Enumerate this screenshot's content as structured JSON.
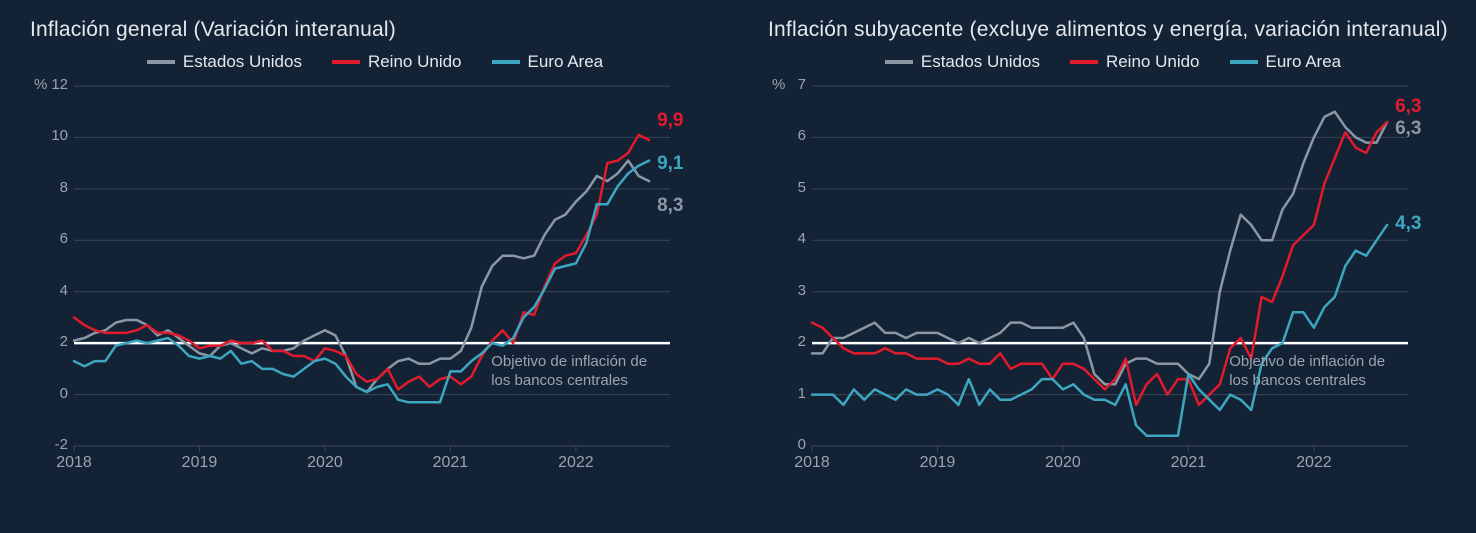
{
  "background_color": "#132235",
  "text_color": "#e4e8ed",
  "muted_color": "#9aa4b0",
  "grid_color": "#3a4656",
  "target_line_color": "#ffffff",
  "font_family": "Segoe UI",
  "panels": [
    {
      "title": "Inflación general (Variación interanual)",
      "y_unit": "%",
      "ylim": [
        -2,
        12
      ],
      "ytick_step": 2,
      "yticks": [
        -2,
        0,
        2,
        4,
        6,
        8,
        10,
        12
      ],
      "x_years": [
        2018,
        2019,
        2020,
        2021,
        2022
      ],
      "x_range_months": 58,
      "target_line_value": 2,
      "target_note": "Objetivo de inflación de\nlos bancos centrales",
      "line_width": 2.5,
      "legend": [
        {
          "label": "Estados Unidos",
          "color": "#8a97a5"
        },
        {
          "label": "Reino Unido",
          "color": "#e21b2c"
        },
        {
          "label": "Euro Area",
          "color": "#3da6c1"
        }
      ],
      "series": {
        "us": {
          "color": "#8a97a5",
          "end_label": "8,3",
          "end_label_color": "#8a97a5",
          "values": [
            2.1,
            2.2,
            2.4,
            2.5,
            2.8,
            2.9,
            2.9,
            2.7,
            2.3,
            2.5,
            2.2,
            1.9,
            1.6,
            1.5,
            1.9,
            2.0,
            1.8,
            1.6,
            1.8,
            1.7,
            1.7,
            1.8,
            2.1,
            2.3,
            2.5,
            2.3,
            1.5,
            0.3,
            0.1,
            0.6,
            1.0,
            1.3,
            1.4,
            1.2,
            1.2,
            1.4,
            1.4,
            1.7,
            2.6,
            4.2,
            5.0,
            5.4,
            5.4,
            5.3,
            5.4,
            6.2,
            6.8,
            7.0,
            7.5,
            7.9,
            8.5,
            8.3,
            8.6,
            9.1,
            8.5,
            8.3
          ]
        },
        "uk": {
          "color": "#e21b2c",
          "end_label": "9,9",
          "end_label_color": "#e21b2c",
          "values": [
            3.0,
            2.7,
            2.5,
            2.4,
            2.4,
            2.4,
            2.5,
            2.7,
            2.4,
            2.4,
            2.3,
            2.1,
            1.8,
            1.9,
            1.9,
            2.1,
            2.0,
            2.0,
            2.1,
            1.7,
            1.7,
            1.5,
            1.5,
            1.3,
            1.8,
            1.7,
            1.5,
            0.8,
            0.5,
            0.6,
            1.0,
            0.2,
            0.5,
            0.7,
            0.3,
            0.6,
            0.7,
            0.4,
            0.7,
            1.5,
            2.1,
            2.5,
            2.0,
            3.2,
            3.1,
            4.2,
            5.1,
            5.4,
            5.5,
            6.2,
            7.0,
            9.0,
            9.1,
            9.4,
            10.1,
            9.9
          ]
        },
        "ea": {
          "color": "#3da6c1",
          "end_label": "9,1",
          "end_label_color": "#3da6c1",
          "values": [
            1.3,
            1.1,
            1.3,
            1.3,
            1.9,
            2.0,
            2.1,
            2.0,
            2.1,
            2.2,
            1.9,
            1.5,
            1.4,
            1.5,
            1.4,
            1.7,
            1.2,
            1.3,
            1.0,
            1.0,
            0.8,
            0.7,
            1.0,
            1.3,
            1.4,
            1.2,
            0.7,
            0.3,
            0.1,
            0.3,
            0.4,
            -0.2,
            -0.3,
            -0.3,
            -0.3,
            -0.3,
            0.9,
            0.9,
            1.3,
            1.6,
            2.0,
            1.9,
            2.2,
            3.0,
            3.4,
            4.1,
            4.9,
            5.0,
            5.1,
            5.9,
            7.4,
            7.4,
            8.1,
            8.6,
            8.9,
            9.1
          ]
        }
      }
    },
    {
      "title": "Inflación subyacente (excluye alimentos y energía, variación interanual)",
      "y_unit": "%",
      "ylim": [
        0,
        7
      ],
      "ytick_step": 1,
      "yticks": [
        0,
        1,
        2,
        3,
        4,
        5,
        6,
        7
      ],
      "x_years": [
        2018,
        2019,
        2020,
        2021,
        2022
      ],
      "x_range_months": 58,
      "target_line_value": 2,
      "target_note": "Objetivo de inflación de\nlos bancos centrales",
      "line_width": 2.5,
      "legend": [
        {
          "label": "Estados Unidos",
          "color": "#8a97a5"
        },
        {
          "label": "Reino Unido",
          "color": "#e21b2c"
        },
        {
          "label": "Euro Area",
          "color": "#3da6c1"
        }
      ],
      "series": {
        "us": {
          "color": "#8a97a5",
          "end_label": "6,3",
          "end_label_color": "#8a97a5",
          "values": [
            1.8,
            1.8,
            2.1,
            2.1,
            2.2,
            2.3,
            2.4,
            2.2,
            2.2,
            2.1,
            2.2,
            2.2,
            2.2,
            2.1,
            2.0,
            2.1,
            2.0,
            2.1,
            2.2,
            2.4,
            2.4,
            2.3,
            2.3,
            2.3,
            2.3,
            2.4,
            2.1,
            1.4,
            1.2,
            1.2,
            1.6,
            1.7,
            1.7,
            1.6,
            1.6,
            1.6,
            1.4,
            1.3,
            1.6,
            3.0,
            3.8,
            4.5,
            4.3,
            4.0,
            4.0,
            4.6,
            4.9,
            5.5,
            6.0,
            6.4,
            6.5,
            6.2,
            6.0,
            5.9,
            5.9,
            6.3
          ]
        },
        "uk": {
          "color": "#e21b2c",
          "end_label": "6,3",
          "end_label_color": "#e21b2c",
          "values": [
            2.4,
            2.3,
            2.1,
            1.9,
            1.8,
            1.8,
            1.8,
            1.9,
            1.8,
            1.8,
            1.7,
            1.7,
            1.7,
            1.6,
            1.6,
            1.7,
            1.6,
            1.6,
            1.8,
            1.5,
            1.6,
            1.6,
            1.6,
            1.3,
            1.6,
            1.6,
            1.5,
            1.3,
            1.1,
            1.3,
            1.7,
            0.8,
            1.2,
            1.4,
            1.0,
            1.3,
            1.3,
            0.8,
            1.0,
            1.2,
            1.9,
            2.1,
            1.7,
            2.9,
            2.8,
            3.3,
            3.9,
            4.1,
            4.3,
            5.1,
            5.6,
            6.1,
            5.8,
            5.7,
            6.1,
            6.3
          ]
        },
        "ea": {
          "color": "#3da6c1",
          "end_label": "4,3",
          "end_label_color": "#3da6c1",
          "values": [
            1.0,
            1.0,
            1.0,
            0.8,
            1.1,
            0.9,
            1.1,
            1.0,
            0.9,
            1.1,
            1.0,
            1.0,
            1.1,
            1.0,
            0.8,
            1.3,
            0.8,
            1.1,
            0.9,
            0.9,
            1.0,
            1.1,
            1.3,
            1.3,
            1.1,
            1.2,
            1.0,
            0.9,
            0.9,
            0.8,
            1.2,
            0.4,
            0.2,
            0.2,
            0.2,
            0.2,
            1.4,
            1.1,
            0.9,
            0.7,
            1.0,
            0.9,
            0.7,
            1.6,
            1.9,
            2.0,
            2.6,
            2.6,
            2.3,
            2.7,
            2.9,
            3.5,
            3.8,
            3.7,
            4.0,
            4.3
          ]
        }
      }
    }
  ]
}
